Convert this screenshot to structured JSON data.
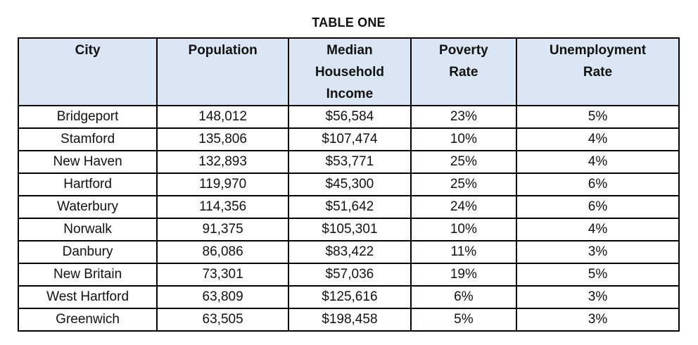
{
  "title": "TABLE ONE",
  "table": {
    "header_bg": "#dbe6f4",
    "border_color": "#000000",
    "columns": [
      {
        "label": "City",
        "lines": [
          "City"
        ],
        "width_pct": 21.0
      },
      {
        "label": "Population",
        "lines": [
          "Population"
        ],
        "width_pct": 19.9
      },
      {
        "label": "Median Household Income",
        "lines": [
          "Median",
          "Household",
          "Income"
        ],
        "width_pct": 18.5
      },
      {
        "label": "Poverty Rate",
        "lines": [
          "Poverty",
          "Rate"
        ],
        "width_pct": 16.0
      },
      {
        "label": "Unemployment Rate",
        "lines": [
          "Unemployment",
          "Rate"
        ],
        "width_pct": 24.6
      }
    ],
    "rows": [
      [
        "Bridgeport",
        "148,012",
        "$56,584",
        "23%",
        "5%"
      ],
      [
        "Stamford",
        "135,806",
        "$107,474",
        "10%",
        "4%"
      ],
      [
        "New Haven",
        "132,893",
        "$53,771",
        "25%",
        "4%"
      ],
      [
        "Hartford",
        "119,970",
        "$45,300",
        "25%",
        "6%"
      ],
      [
        "Waterbury",
        "114,356",
        "$51,642",
        "24%",
        "6%"
      ],
      [
        "Norwalk",
        "91,375",
        "$105,301",
        "10%",
        "4%"
      ],
      [
        "Danbury",
        "86,086",
        "$83,422",
        "11%",
        "3%"
      ],
      [
        "New Britain",
        "73,301",
        "$57,036",
        "19%",
        "5%"
      ],
      [
        "West Hartford",
        "63,809",
        "$125,616",
        "6%",
        "3%"
      ],
      [
        "Greenwich",
        "63,505",
        "$198,458",
        "5%",
        "3%"
      ]
    ]
  }
}
